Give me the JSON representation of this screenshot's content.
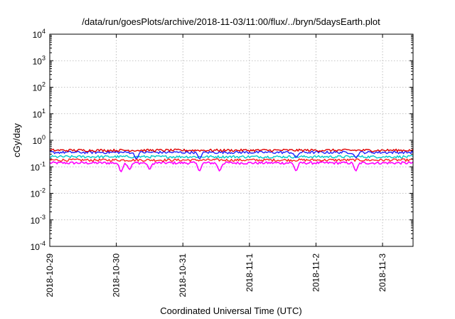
{
  "chart_data": {
    "type": "line",
    "title": "/data/run/goesPlots/archive/2018-11-03/11:00/flux/../bryn/5daysEarth.plot",
    "xlabel": "Coordinated Universal Time (UTC)",
    "ylabel": "cGy/day",
    "yscale": "log",
    "ylim": [
      0.0001,
      10000
    ],
    "yticks": [
      {
        "value": 0.0001,
        "base": "10",
        "exp": "-4"
      },
      {
        "value": 0.001,
        "base": "10",
        "exp": "-3"
      },
      {
        "value": 0.01,
        "base": "10",
        "exp": "-2"
      },
      {
        "value": 0.1,
        "base": "10",
        "exp": "-1"
      },
      {
        "value": 1,
        "base": "10",
        "exp": "0"
      },
      {
        "value": 10,
        "base": "10",
        "exp": "1"
      },
      {
        "value": 100,
        "base": "10",
        "exp": "2"
      },
      {
        "value": 1000,
        "base": "10",
        "exp": "3"
      },
      {
        "value": 10000,
        "base": "10",
        "exp": "4"
      }
    ],
    "xlim": [
      "2018-10-29T00:00",
      "2018-11-03T11:00"
    ],
    "xticks": [
      "2018-10-29",
      "2018-10-30",
      "2018-10-31",
      "2018-11-1",
      "2018-11-2",
      "2018-11-3"
    ],
    "grid": true,
    "series": [
      {
        "color": "#ff00ff",
        "baseline": 0.14,
        "dips": [
          {
            "day": 1.07,
            "value": 0.065
          },
          {
            "day": 1.2,
            "value": 0.08
          },
          {
            "day": 1.5,
            "value": 0.08
          },
          {
            "day": 2.25,
            "value": 0.07
          },
          {
            "day": 2.55,
            "value": 0.07
          },
          {
            "day": 3.7,
            "value": 0.07
          },
          {
            "day": 4.6,
            "value": 0.07
          }
        ]
      },
      {
        "color": "#ff2020",
        "baseline": 0.18,
        "dips": []
      },
      {
        "color": "#00c8c8",
        "baseline": 0.24,
        "dips": []
      },
      {
        "color": "#2020ff",
        "baseline": 0.35,
        "dips": [
          {
            "day": 1.3,
            "value": 0.2
          },
          {
            "day": 2.25,
            "value": 0.2
          },
          {
            "day": 3.7,
            "value": 0.22
          },
          {
            "day": 4.6,
            "value": 0.22
          }
        ]
      },
      {
        "color": "#e00000",
        "baseline": 0.42,
        "dips": []
      }
    ]
  }
}
